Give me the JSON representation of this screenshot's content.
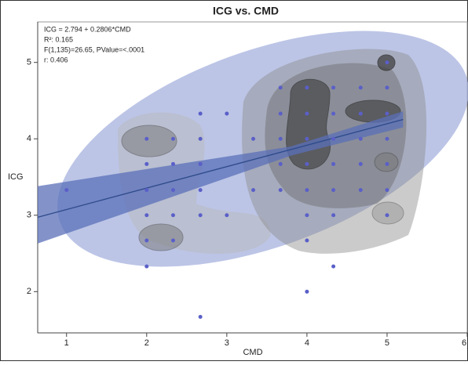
{
  "chart_data": {
    "type": "scatter",
    "title": "ICG vs. CMD",
    "x_label": "CMD",
    "y_label": "ICG",
    "annotations": [
      "ICG = 2.794 + 0.2806*CMD",
      "R²: 0.165",
      "F(1,135)=26.65, PValue=<.0001",
      "r: 0.406"
    ],
    "xlim": [
      0.64,
      6.0
    ],
    "xticks": [
      1,
      2,
      3,
      4,
      5,
      6
    ],
    "ylim": [
      1.46,
      5.53
    ],
    "yticks": [
      2,
      3,
      4,
      5
    ],
    "points": {
      "color": "#5a5fc8",
      "x": [
        1,
        2,
        2,
        2,
        2,
        2,
        2,
        2.33,
        2.33,
        2.33,
        2.33,
        2.33,
        2.67,
        2.67,
        2.67,
        2.67,
        2.67,
        2.67,
        3,
        3,
        3.33,
        3.33,
        3.67,
        3.67,
        3.67,
        3.67,
        3.67,
        4,
        4,
        4,
        4,
        4,
        4,
        4,
        4,
        4.33,
        4.33,
        4.33,
        4.33,
        4.33,
        4.33,
        4.33,
        4.67,
        4.67,
        4.67,
        4.67,
        4.67,
        5,
        5,
        5,
        5,
        5,
        5,
        5
      ],
      "y": [
        3.33,
        2.33,
        2.67,
        3,
        3.33,
        3.67,
        4,
        2.67,
        3,
        3.33,
        3.67,
        4,
        1.67,
        3,
        3.33,
        3.67,
        4,
        4.33,
        3,
        4.33,
        3.33,
        4,
        3.33,
        3.67,
        4,
        4.33,
        4.67,
        2,
        2.67,
        3,
        3.33,
        3.67,
        4,
        4.33,
        4.67,
        2.33,
        3,
        3.33,
        3.67,
        4,
        4.33,
        4.67,
        3.33,
        3.67,
        4,
        4.33,
        4.67,
        3,
        3.33,
        3.67,
        4,
        4.33,
        4.67,
        5
      ]
    },
    "fit": {
      "color": "#2d4a8a",
      "x": [
        0.64,
        5.2
      ],
      "y": [
        2.974,
        4.253
      ]
    },
    "band": {
      "color": "#5a6fb8",
      "x": [
        0.64,
        3.8,
        5.2
      ],
      "upper": [
        3.38,
        3.9,
        4.36
      ],
      "lower": [
        2.63,
        3.78,
        4.15
      ]
    }
  }
}
